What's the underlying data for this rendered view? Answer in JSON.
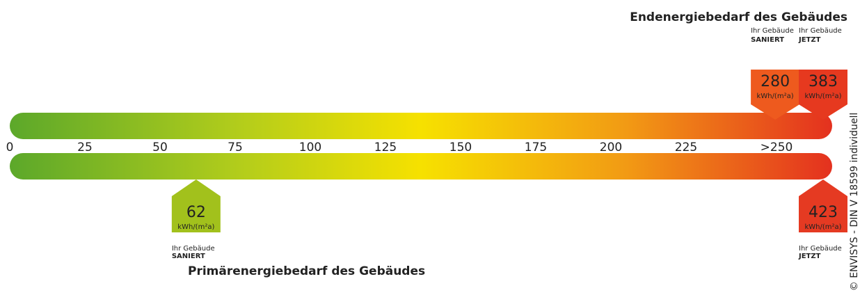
{
  "chart_data": {
    "type": "energy-scale",
    "xlim": [
      0,
      250
    ],
    "xticks": [
      0,
      25,
      50,
      75,
      100,
      125,
      150,
      175,
      200,
      225,
      {
        "value": 250,
        "label": ">250"
      }
    ],
    "unit": "kWh/(m²a)",
    "top": {
      "title": "Endenergiebedarf des Gebäudes",
      "markers": [
        {
          "caption": "Ihr Gebäude",
          "status": "SANIERT",
          "value": 280,
          "color": "#ee5a1e"
        },
        {
          "caption": "Ihr Gebäude",
          "status": "JETZT",
          "value": 383,
          "color": "#e6391f"
        }
      ]
    },
    "bottom": {
      "title": "Primärenergiebedarf des Gebäudes",
      "markers": [
        {
          "caption": "Ihr Gebäude",
          "status": "SANIERT",
          "value": 62,
          "color": "#a2c11c"
        },
        {
          "caption": "Ihr Gebäude",
          "status": "JETZT",
          "value": 423,
          "color": "#e53a22"
        }
      ]
    },
    "copyright": "© ENVISYS - DIN V 18599 individuell"
  }
}
